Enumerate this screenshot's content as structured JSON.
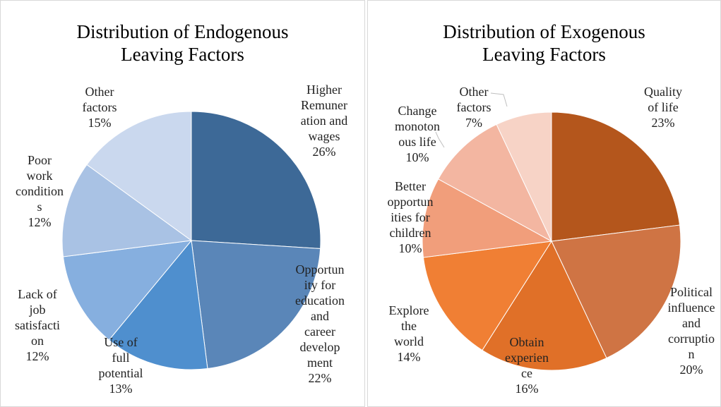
{
  "chart_data": [
    {
      "type": "pie",
      "title": "Distribution of Endogenous\nLeaving Factors",
      "categories": [
        "Higher\nRemuner\nation and\nwages",
        "Opportun\nity for\neducation\nand\ncareer\ndevelop\nment",
        "Use of\nfull\npotential",
        "Lack of\njob\nsatisfacti\non",
        "Poor\nwork\ncondition\ns",
        "Other\nfactors"
      ],
      "values": [
        26,
        22,
        13,
        12,
        12,
        15
      ],
      "value_labels": [
        "26%",
        "22%",
        "13%",
        "12%",
        "12%",
        "15%"
      ],
      "colors": [
        "#3d6997",
        "#5a86b8",
        "#4f8fce",
        "#86afdf",
        "#a9c2e4",
        "#cad8ee"
      ]
    },
    {
      "type": "pie",
      "title": "Distribution of Exogenous\nLeaving Factors",
      "categories": [
        "Quality\nof life",
        "Political\ninfluence\nand\ncorruptio\nn",
        "Obtain\nexperien\nce",
        "Explore\nthe\nworld",
        "Better\nopportun\nities for\nchildren",
        "Change\nmonoton\nous life",
        "Other\nfactors"
      ],
      "values": [
        23,
        20,
        16,
        14,
        10,
        10,
        7
      ],
      "value_labels": [
        "23%",
        "20%",
        "16%",
        "14%",
        "10%",
        "10%",
        "7%"
      ],
      "colors": [
        "#b4561c",
        "#cf7444",
        "#e07028",
        "#f07f34",
        "#f19e7b",
        "#f3b6a1",
        "#f7d3c6"
      ]
    }
  ]
}
